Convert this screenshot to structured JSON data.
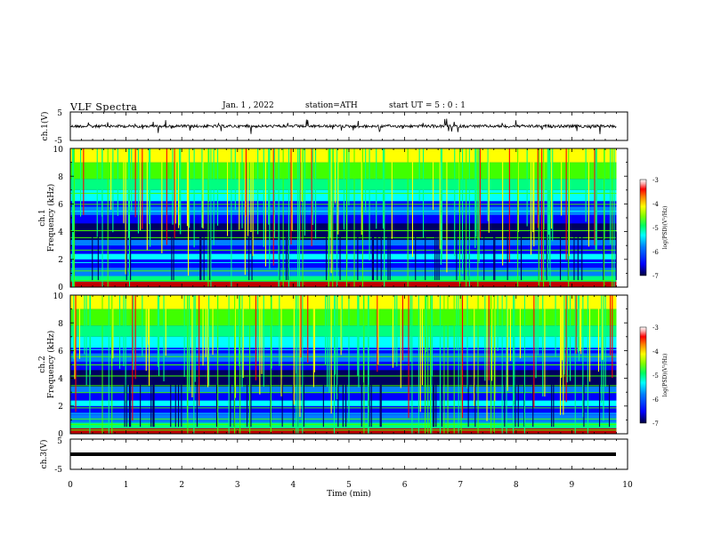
{
  "header": {
    "title": "VLF Spectra",
    "date": "Jan. 1 , 2022",
    "station": "station=ATH",
    "start": "start UT = 5 : 0 : 1"
  },
  "colors": {
    "colormap": [
      "#000060",
      "#0000ff",
      "#0080ff",
      "#00ffff",
      "#00ff80",
      "#40ff00",
      "#ffff00",
      "#ff8000",
      "#ff0000",
      "#c00000",
      "#ffffff"
    ],
    "trace": "#000000"
  },
  "chart_data": [
    {
      "type": "line",
      "panel": "ch1-waveform",
      "ylabel": "ch.1(V)",
      "ylim": [
        -5,
        5
      ],
      "yticks": [
        "5",
        "-5"
      ],
      "x": [
        0,
        1,
        2,
        3,
        4,
        5,
        6,
        7,
        8,
        9,
        9.8
      ],
      "y": [
        0,
        0.2,
        -0.3,
        0.1,
        0,
        -0.2,
        0.3,
        0,
        -0.1,
        0.2,
        0
      ],
      "x_range_min": [
        0,
        9.8
      ],
      "description_series": [
        {
          "values": [
            0,
            0.2,
            -0.3,
            0.1,
            0,
            -0.2,
            0.3,
            0,
            -0.1,
            0.2,
            0
          ]
        }
      ]
    },
    {
      "type": "heatmap",
      "panel": "ch1-spectrogram",
      "ylabel_top": "ch.1",
      "ylabel": "Frequency (kHz)",
      "ylim": [
        0,
        10
      ],
      "yticks": [
        "0",
        "2",
        "4",
        "6",
        "8",
        "10"
      ],
      "colorbar_label": "log(PSD)(V²/Hz)",
      "colorbar_ticks": [
        "-3",
        "-4",
        "-5",
        "-6",
        "-7"
      ],
      "colorbar_range": [
        -7,
        -3
      ],
      "x_range_min": [
        0,
        9.8
      ]
    },
    {
      "type": "heatmap",
      "panel": "ch2-spectrogram",
      "ylabel_top": "ch.2",
      "ylabel": "Frequency (kHz)",
      "ylim": [
        0,
        10
      ],
      "yticks": [
        "0",
        "2",
        "4",
        "6",
        "8",
        "10"
      ],
      "colorbar_label": "log(PSD)(V²/Hz)",
      "colorbar_ticks": [
        "-3",
        "-4",
        "-5",
        "-6",
        "-7"
      ],
      "colorbar_range": [
        -7,
        -3
      ],
      "x_range_min": [
        0,
        9.8
      ]
    },
    {
      "type": "line",
      "panel": "ch3-waveform",
      "ylabel": "ch.3(V)",
      "ylim": [
        -5,
        5
      ],
      "yticks": [
        "5",
        "-5"
      ],
      "x": [
        0,
        9.8
      ],
      "y": [
        0,
        0
      ]
    }
  ],
  "xaxis": {
    "label": "Time (min)",
    "ticks": [
      "0",
      "1",
      "2",
      "3",
      "4",
      "5",
      "6",
      "7",
      "8",
      "9",
      "10"
    ],
    "xlim": [
      0,
      10
    ]
  }
}
